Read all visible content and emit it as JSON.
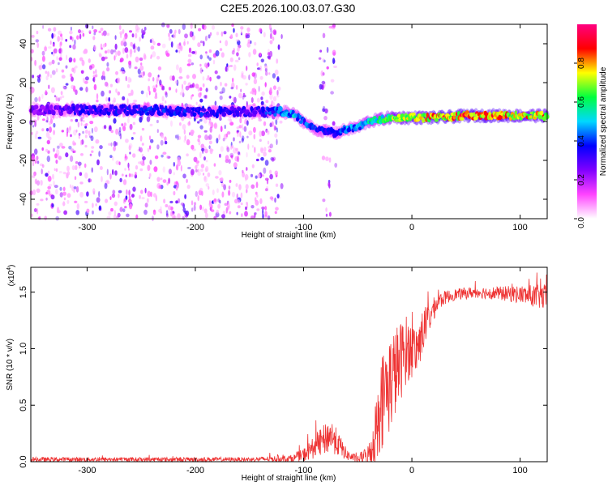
{
  "title": "C2E5.2026.100.03.07.G30",
  "chart_data": [
    {
      "type": "heatmap",
      "name": "spectrogram",
      "xlabel": "Height of straight line (km)",
      "ylabel": "Frequency (Hz)",
      "xlim": [
        -352,
        125
      ],
      "ylim": [
        -50,
        50
      ],
      "x_ticks": [
        -300,
        -200,
        -100,
        0,
        100
      ],
      "y_ticks": [
        -40,
        -20,
        0,
        20,
        40
      ],
      "x_tick_labels": [
        "-300",
        "-200",
        "-100",
        "0",
        "100"
      ],
      "y_tick_labels": [
        "-40",
        "-20",
        "0",
        "20",
        "40"
      ],
      "colorbar": {
        "label": "Normalized spectral amplitude",
        "range": [
          0.0,
          1.0
        ],
        "ticks": [
          0.0,
          0.2,
          0.4,
          0.6,
          0.8
        ],
        "tick_labels": [
          "0.0",
          "0.2",
          "0.4",
          "0.6",
          "0.8"
        ],
        "colormap": [
          "#ffffff",
          "#ff44ff",
          "#8000ff",
          "#0000ff",
          "#00d8ff",
          "#00ff40",
          "#ffff00",
          "#ff0000",
          "#ff0080"
        ]
      },
      "ridge": {
        "description_points_x": [
          -352,
          -300,
          -250,
          -200,
          -150,
          -120,
          -110,
          -100,
          -90,
          -80,
          -70,
          -60,
          -50,
          -40,
          -30,
          -20,
          -10,
          0,
          25,
          50,
          75,
          100,
          125
        ],
        "frequency_hz": [
          6,
          6,
          6,
          5,
          5,
          5,
          4,
          0,
          -4,
          -5,
          -6,
          -4,
          -3,
          0,
          1,
          2,
          2,
          2,
          2,
          3,
          3,
          3,
          3
        ],
        "amplitude": [
          0.25,
          0.35,
          0.38,
          0.38,
          0.32,
          0.45,
          0.5,
          0.45,
          0.42,
          0.4,
          0.4,
          0.45,
          0.5,
          0.55,
          0.6,
          0.7,
          0.75,
          0.8,
          0.85,
          0.85,
          0.85,
          0.8,
          0.8
        ]
      },
      "noise_regions": [
        {
          "x_range": [
            -352,
            -120
          ],
          "density": 0.6
        },
        {
          "x_range": [
            -85,
            -70
          ],
          "density": 0.3
        }
      ]
    },
    {
      "type": "line",
      "name": "snr",
      "xlabel": "Height of straight line (km)",
      "ylabel": "SNR (10 * v/v)",
      "y_multiplier": "(x10",
      "y_multiplier_exp": "4",
      "y_multiplier_close": ")",
      "xlim": [
        -352,
        125
      ],
      "ylim": [
        0.0,
        1.72
      ],
      "x_ticks": [
        -300,
        -200,
        -100,
        0,
        100
      ],
      "y_ticks": [
        0.0,
        0.5,
        1.0,
        1.5
      ],
      "x_tick_labels": [
        "-300",
        "-200",
        "-100",
        "0",
        "100"
      ],
      "y_tick_labels": [
        "0.0",
        "0.5",
        "1.0",
        "1.5"
      ],
      "color": "#ee3333",
      "envelope": {
        "x": [
          -352,
          -300,
          -200,
          -150,
          -110,
          -100,
          -90,
          -80,
          -75,
          -70,
          -60,
          -50,
          -40,
          -35,
          -30,
          -25,
          -20,
          -15,
          -10,
          -5,
          0,
          5,
          10,
          15,
          20,
          25,
          30,
          40,
          60,
          80,
          100,
          125
        ],
        "base": [
          0.02,
          0.02,
          0.02,
          0.02,
          0.03,
          0.06,
          0.13,
          0.2,
          0.24,
          0.18,
          0.06,
          0.02,
          0.06,
          0.18,
          0.45,
          0.62,
          0.7,
          0.8,
          0.9,
          1.0,
          0.98,
          1.0,
          1.15,
          1.25,
          1.35,
          1.42,
          1.45,
          1.48,
          1.5,
          1.49,
          1.48,
          1.45
        ],
        "noise_amplitude": [
          0.02,
          0.02,
          0.02,
          0.02,
          0.03,
          0.06,
          0.1,
          0.14,
          0.16,
          0.12,
          0.05,
          0.03,
          0.1,
          0.25,
          0.4,
          0.45,
          0.45,
          0.4,
          0.35,
          0.3,
          0.25,
          0.22,
          0.2,
          0.15,
          0.1,
          0.08,
          0.06,
          0.05,
          0.05,
          0.06,
          0.08,
          0.12
        ]
      }
    }
  ]
}
